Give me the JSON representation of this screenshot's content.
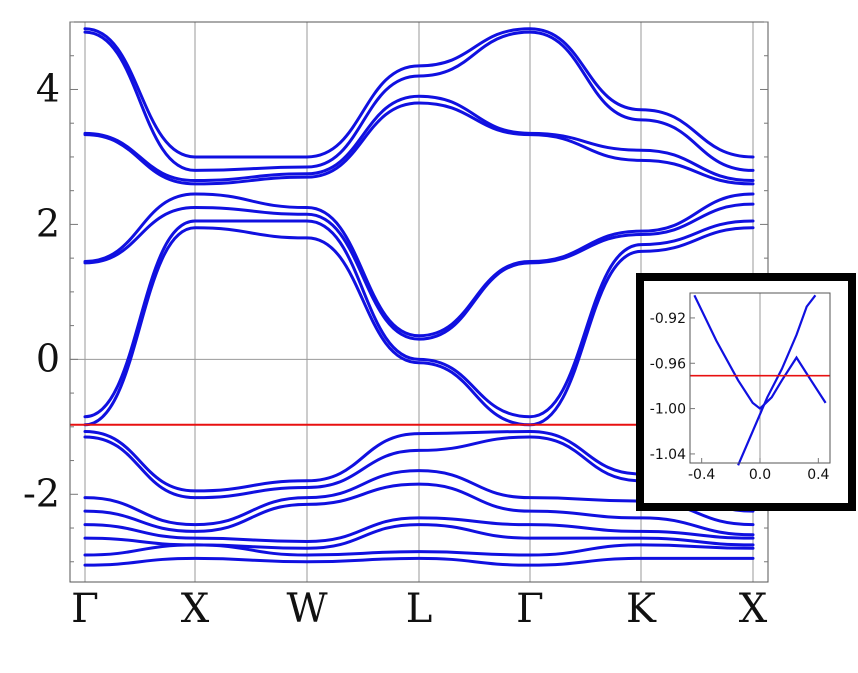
{
  "chart_data": [
    {
      "type": "line",
      "kind": "band-structure",
      "k_path_labels": [
        "Γ",
        "X",
        "W",
        "L",
        "Γ",
        "K",
        "X"
      ],
      "ylim": [
        -3.3,
        5.0
      ],
      "y_ticks": [
        "4",
        "2",
        "0",
        "-2"
      ],
      "y_tick_values": [
        4,
        2,
        0,
        -2
      ],
      "fermi_level": -0.97,
      "grid": true,
      "colors": {
        "bands": "#1010e0",
        "fermi": "#e81010"
      },
      "bands_note_points": [
        0,
        1,
        2,
        3,
        4,
        5,
        6
      ],
      "series": [
        {
          "values": [
            4.9,
            3.0,
            3.0,
            4.35,
            4.9,
            3.7,
            3.0
          ]
        },
        {
          "values": [
            4.85,
            2.8,
            2.85,
            4.2,
            4.85,
            3.55,
            2.8
          ]
        },
        {
          "values": [
            3.35,
            2.65,
            2.75,
            3.9,
            3.35,
            3.1,
            2.65
          ]
        },
        {
          "values": [
            3.33,
            2.6,
            2.7,
            3.8,
            3.33,
            2.95,
            2.6
          ]
        },
        {
          "values": [
            1.45,
            2.45,
            2.25,
            0.35,
            1.45,
            1.9,
            2.45
          ]
        },
        {
          "values": [
            1.43,
            2.25,
            2.15,
            0.3,
            1.43,
            1.85,
            2.3
          ]
        },
        {
          "values": [
            -0.85,
            2.05,
            2.05,
            0.0,
            -0.85,
            1.7,
            2.05
          ]
        },
        {
          "values": [
            -0.97,
            1.95,
            1.8,
            -0.05,
            -0.97,
            1.6,
            1.95
          ]
        },
        {
          "values": [
            -1.07,
            -1.95,
            -1.8,
            -1.1,
            -1.07,
            -1.7,
            -2.05
          ]
        },
        {
          "values": [
            -1.15,
            -2.05,
            -1.9,
            -1.35,
            -1.15,
            -1.8,
            -2.25
          ]
        },
        {
          "values": [
            -2.05,
            -2.45,
            -2.05,
            -1.65,
            -2.05,
            -2.1,
            -2.45
          ]
        },
        {
          "values": [
            -2.25,
            -2.55,
            -2.15,
            -1.85,
            -2.25,
            -2.35,
            -2.6
          ]
        },
        {
          "values": [
            -2.45,
            -2.65,
            -2.7,
            -2.35,
            -2.45,
            -2.55,
            -2.65
          ]
        },
        {
          "values": [
            -2.65,
            -2.75,
            -2.8,
            -2.45,
            -2.65,
            -2.65,
            -2.75
          ]
        },
        {
          "values": [
            -2.9,
            -2.75,
            -2.9,
            -2.85,
            -2.9,
            -2.75,
            -2.8
          ]
        },
        {
          "values": [
            -3.05,
            -2.95,
            -3.0,
            -2.95,
            -3.05,
            -2.95,
            -2.95
          ]
        }
      ]
    },
    {
      "type": "line",
      "kind": "inset-zoom",
      "xlim": [
        -0.48,
        0.48
      ],
      "ylim": [
        -1.048,
        -0.898
      ],
      "x_ticks": [
        "-0.4",
        "0.0",
        "0.4"
      ],
      "x_tick_values": [
        -0.4,
        0.0,
        0.4
      ],
      "y_ticks": [
        "-0.92",
        "-0.96",
        "-1.00",
        "-1.04"
      ],
      "y_tick_values": [
        -0.92,
        -0.96,
        -1.0,
        -1.04
      ],
      "fermi_level": -0.971,
      "series": [
        {
          "x": [
            -0.45,
            -0.3,
            -0.15,
            -0.05,
            0.0,
            0.08,
            0.15,
            0.25,
            0.35,
            0.45
          ],
          "y": [
            -0.9,
            -0.94,
            -0.975,
            -0.995,
            -1.0,
            -0.99,
            -0.975,
            -0.955,
            -0.975,
            -0.995
          ]
        },
        {
          "x": [
            -0.15,
            -0.05,
            0.05,
            0.15,
            0.25,
            0.32,
            0.38
          ],
          "y": [
            -1.05,
            -1.02,
            -0.99,
            -0.965,
            -0.935,
            -0.91,
            -0.9
          ]
        }
      ]
    }
  ]
}
